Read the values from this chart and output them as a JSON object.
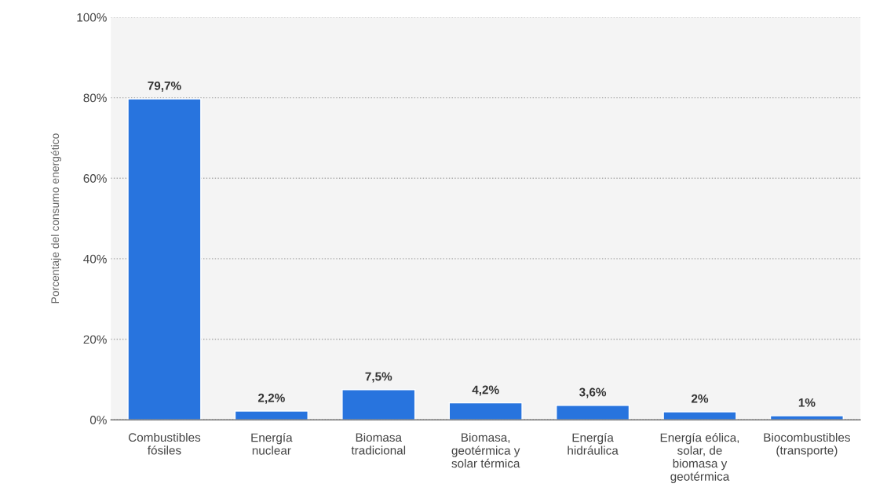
{
  "chart_data": {
    "type": "bar",
    "ylabel": "Porcentaje del consumo energético",
    "categories": [
      "Combustibles\nfósiles",
      "Energía\nnuclear",
      "Biomasa\ntradicional",
      "Biomasa,\ngeotérmica y\nsolar térmica",
      "Energía\nhidráulica",
      "Energía eólica,\nsolar, de\nbiomasa y\ngeotérmica",
      "Biocombustibles\n(transporte)"
    ],
    "values": [
      79.7,
      2.2,
      7.5,
      4.2,
      3.6,
      2,
      1
    ],
    "value_labels": [
      "79,7%",
      "2,2%",
      "7,5%",
      "4,2%",
      "3,6%",
      "2%",
      "1%"
    ],
    "color": "#2874de",
    "ylim": [
      0,
      100
    ],
    "yticks": [
      {
        "value": 0,
        "label": "0%"
      },
      {
        "value": 20,
        "label": "20%"
      },
      {
        "value": 40,
        "label": "40%"
      },
      {
        "value": 60,
        "label": "60%"
      },
      {
        "value": 80,
        "label": "80%"
      },
      {
        "value": 100,
        "label": "100%"
      }
    ],
    "grid": "y"
  }
}
